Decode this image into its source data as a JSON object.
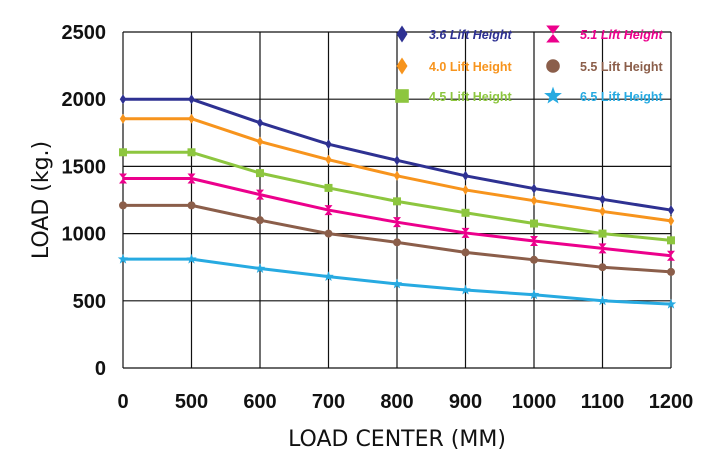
{
  "chart_data": {
    "type": "line",
    "title": "",
    "xlabel": "LOAD CENTER (MM)",
    "ylabel": "LOAD (kg.)",
    "categories": [
      "0",
      "500",
      "600",
      "700",
      "800",
      "900",
      "1000",
      "1100",
      "1200"
    ],
    "ylim": [
      0,
      2500
    ],
    "yticks": [
      "0",
      "500",
      "1000",
      "1500",
      "2000",
      "2500"
    ],
    "grid": true,
    "legend_position": "top-right",
    "series": [
      {
        "name": "3.6 Lift Height",
        "color": "#2e3192",
        "marker": "diamond",
        "italic": true,
        "values": [
          2000,
          2000,
          1825,
          1665,
          1545,
          1430,
          1335,
          1255,
          1175
        ]
      },
      {
        "name": "4.0 Lift Height",
        "color": "#f7941d",
        "marker": "diamond",
        "italic": false,
        "values": [
          1855,
          1855,
          1685,
          1550,
          1430,
          1325,
          1245,
          1165,
          1095
        ]
      },
      {
        "name": "4.5 Lift Height",
        "color": "#8dc63f",
        "marker": "square",
        "italic": false,
        "values": [
          1605,
          1605,
          1450,
          1340,
          1240,
          1155,
          1075,
          1000,
          950
        ]
      },
      {
        "name": "5.1 Lift Height",
        "color": "#ec008c",
        "marker": "hourglass",
        "italic": true,
        "values": [
          1410,
          1410,
          1290,
          1175,
          1085,
          1005,
          945,
          890,
          835
        ]
      },
      {
        "name": "5.5 Lift Height",
        "color": "#8b5e4a",
        "marker": "circle",
        "italic": false,
        "values": [
          1210,
          1210,
          1100,
          1000,
          935,
          860,
          805,
          750,
          715
        ]
      },
      {
        "name": "6.5 Lift Height",
        "color": "#27aae1",
        "marker": "star",
        "italic": false,
        "values": [
          810,
          810,
          740,
          680,
          625,
          580,
          545,
          500,
          475
        ]
      }
    ]
  }
}
